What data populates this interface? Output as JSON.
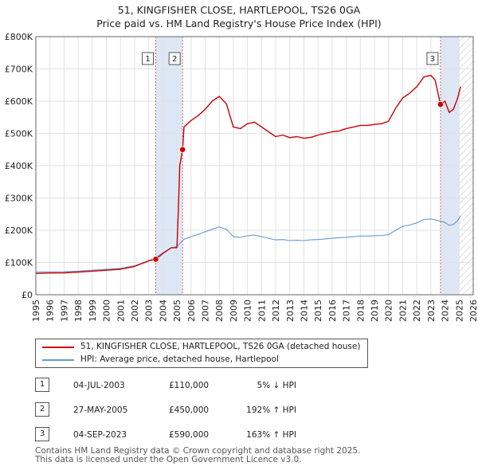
{
  "chart_data": {
    "type": "line",
    "title": "51, KINGFISHER CLOSE, HARTLEPOOL, TS26 0GA",
    "subtitle": "Price paid vs. HM Land Registry's House Price Index (HPI)",
    "xlim": [
      1995,
      2026
    ],
    "ylim": [
      0,
      800000
    ],
    "x_ticks": [
      "1995",
      "1996",
      "1997",
      "1998",
      "1999",
      "2000",
      "2001",
      "2002",
      "2003",
      "2004",
      "2005",
      "2006",
      "2007",
      "2008",
      "2009",
      "2010",
      "2011",
      "2012",
      "2013",
      "2014",
      "2015",
      "2016",
      "2017",
      "2018",
      "2019",
      "2020",
      "2021",
      "2022",
      "2023",
      "2024",
      "2025",
      "2026"
    ],
    "y_ticks": [
      {
        "value": 0,
        "label": "£0"
      },
      {
        "value": 100000,
        "label": "£100K"
      },
      {
        "value": 200000,
        "label": "£200K"
      },
      {
        "value": 300000,
        "label": "£300K"
      },
      {
        "value": 400000,
        "label": "£400K"
      },
      {
        "value": 500000,
        "label": "£500K"
      },
      {
        "value": 600000,
        "label": "£600K"
      },
      {
        "value": 700000,
        "label": "£700K"
      },
      {
        "value": 800000,
        "label": "£800K"
      }
    ],
    "series": [
      {
        "name": "51, KINGFISHER CLOSE, HARTLEPOOL, TS26 0GA (detached house)",
        "color": "#cc0000",
        "points": [
          [
            1995.0,
            66000
          ],
          [
            1996.0,
            67500
          ],
          [
            1997.0,
            68000
          ],
          [
            1998.0,
            70000
          ],
          [
            1999.0,
            73000
          ],
          [
            2000.0,
            76000
          ],
          [
            2001.0,
            79000
          ],
          [
            2002.0,
            88000
          ],
          [
            2003.0,
            105000
          ],
          [
            2003.5,
            110000
          ],
          [
            2004.0,
            128000
          ],
          [
            2004.6,
            146000
          ],
          [
            2005.0,
            146000
          ],
          [
            2005.1,
            265000
          ],
          [
            2005.2,
            400000
          ],
          [
            2005.4,
            450000
          ],
          [
            2005.5,
            520000
          ],
          [
            2006.0,
            540000
          ],
          [
            2006.5,
            555000
          ],
          [
            2007.0,
            575000
          ],
          [
            2007.5,
            600000
          ],
          [
            2008.0,
            615000
          ],
          [
            2008.5,
            592000
          ],
          [
            2009.0,
            520000
          ],
          [
            2009.5,
            515000
          ],
          [
            2010.0,
            530000
          ],
          [
            2010.5,
            535000
          ],
          [
            2011.0,
            520000
          ],
          [
            2011.5,
            505000
          ],
          [
            2012.0,
            490000
          ],
          [
            2012.5,
            495000
          ],
          [
            2013.0,
            487000
          ],
          [
            2013.5,
            490000
          ],
          [
            2014.0,
            485000
          ],
          [
            2014.5,
            488000
          ],
          [
            2015.0,
            495000
          ],
          [
            2015.5,
            500000
          ],
          [
            2016.0,
            505000
          ],
          [
            2016.5,
            508000
          ],
          [
            2017.0,
            515000
          ],
          [
            2017.5,
            520000
          ],
          [
            2018.0,
            525000
          ],
          [
            2018.5,
            525000
          ],
          [
            2019.0,
            528000
          ],
          [
            2019.5,
            530000
          ],
          [
            2020.0,
            538000
          ],
          [
            2020.5,
            578000
          ],
          [
            2021.0,
            610000
          ],
          [
            2021.5,
            625000
          ],
          [
            2022.0,
            645000
          ],
          [
            2022.5,
            675000
          ],
          [
            2023.0,
            680000
          ],
          [
            2023.3,
            665000
          ],
          [
            2023.68,
            590000
          ],
          [
            2024.0,
            600000
          ],
          [
            2024.3,
            565000
          ],
          [
            2024.6,
            575000
          ],
          [
            2024.9,
            610000
          ],
          [
            2025.1,
            645000
          ]
        ]
      },
      {
        "name": "HPI: Average price, detached house, Hartlepool",
        "color": "#6699cc",
        "points": [
          [
            1995.0,
            70000
          ],
          [
            1996.0,
            71000
          ],
          [
            1997.0,
            71500
          ],
          [
            1998.0,
            73000
          ],
          [
            1999.0,
            76000
          ],
          [
            2000.0,
            79000
          ],
          [
            2001.0,
            82000
          ],
          [
            2002.0,
            90000
          ],
          [
            2003.0,
            106000
          ],
          [
            2003.5,
            115000
          ],
          [
            2004.0,
            130000
          ],
          [
            2004.6,
            145000
          ],
          [
            2005.0,
            150000
          ],
          [
            2005.5,
            172000
          ],
          [
            2006.0,
            180000
          ],
          [
            2006.5,
            187000
          ],
          [
            2007.0,
            195000
          ],
          [
            2007.5,
            203000
          ],
          [
            2008.0,
            210000
          ],
          [
            2008.5,
            203000
          ],
          [
            2009.0,
            180000
          ],
          [
            2009.5,
            178000
          ],
          [
            2010.0,
            183000
          ],
          [
            2010.5,
            185000
          ],
          [
            2011.0,
            180000
          ],
          [
            2011.5,
            175000
          ],
          [
            2012.0,
            170000
          ],
          [
            2012.5,
            171000
          ],
          [
            2013.0,
            168000
          ],
          [
            2013.5,
            169000
          ],
          [
            2014.0,
            168000
          ],
          [
            2014.5,
            170000
          ],
          [
            2015.0,
            171000
          ],
          [
            2015.5,
            173000
          ],
          [
            2016.0,
            175000
          ],
          [
            2016.5,
            177000
          ],
          [
            2017.0,
            178000
          ],
          [
            2017.5,
            180000
          ],
          [
            2018.0,
            182000
          ],
          [
            2018.5,
            182000
          ],
          [
            2019.0,
            183000
          ],
          [
            2019.5,
            184000
          ],
          [
            2020.0,
            186000
          ],
          [
            2020.5,
            200000
          ],
          [
            2021.0,
            212000
          ],
          [
            2021.5,
            216000
          ],
          [
            2022.0,
            223000
          ],
          [
            2022.5,
            233000
          ],
          [
            2023.0,
            235000
          ],
          [
            2023.5,
            230000
          ],
          [
            2024.0,
            224000
          ],
          [
            2024.3,
            215000
          ],
          [
            2024.6,
            218000
          ],
          [
            2024.9,
            230000
          ],
          [
            2025.1,
            245000
          ]
        ]
      }
    ],
    "sales": [
      {
        "label": "1",
        "x": 2003.5,
        "value": 110000
      },
      {
        "label": "2",
        "x": 2005.4,
        "value": 450000
      },
      {
        "label": "3",
        "x": 2023.68,
        "value": 590000
      }
    ],
    "shaded_bands": [
      [
        2003.5,
        2005.4
      ],
      [
        2023.68,
        2025.0
      ]
    ],
    "hatched_from": 2025.0,
    "grid": true,
    "legend_position": "below"
  },
  "legend": {
    "items": [
      {
        "label": "51, KINGFISHER CLOSE, HARTLEPOOL, TS26 0GA (detached house)",
        "color": "#cc0000"
      },
      {
        "label": "HPI: Average price, detached house, Hartlepool",
        "color": "#6699cc"
      }
    ]
  },
  "transactions": [
    {
      "num": "1",
      "date": "04-JUL-2003",
      "price": "£110,000",
      "hpi": "5% ↓ HPI"
    },
    {
      "num": "2",
      "date": "27-MAY-2005",
      "price": "£450,000",
      "hpi": "192% ↑ HPI"
    },
    {
      "num": "3",
      "date": "04-SEP-2023",
      "price": "£590,000",
      "hpi": "163% ↑ HPI"
    }
  ],
  "footer": {
    "line1": "Contains HM Land Registry data © Crown copyright and database right 2025.",
    "line2": "This data is licensed under the Open Government Licence v3.0."
  }
}
